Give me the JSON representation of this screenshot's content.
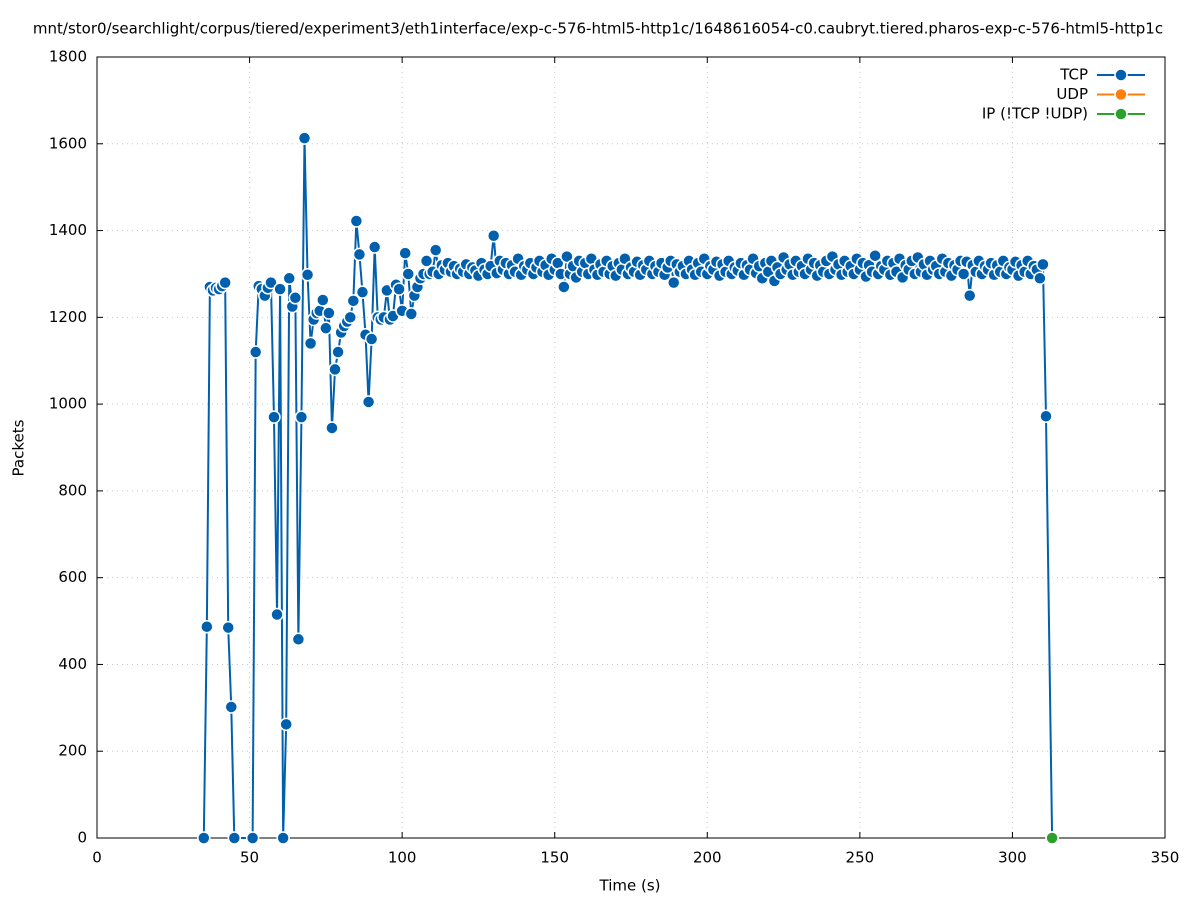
{
  "chart_data": {
    "type": "line",
    "title": "mnt/stor0/searchlight/corpus/tiered/experiment3/eth1interface/exp-c-576-html5-http1c/1648616054-c0.caubryt.tiered.pharos-exp-c-576-html5-http1c",
    "xlabel": "Time (s)",
    "ylabel": "Packets",
    "xlim": [
      0,
      350
    ],
    "xticks": [
      0,
      50,
      100,
      150,
      200,
      250,
      300,
      350
    ],
    "ylim": [
      0,
      1800
    ],
    "yticks": [
      0,
      200,
      400,
      600,
      800,
      1000,
      1200,
      1400,
      1600,
      1800
    ],
    "grid": true,
    "legend": "top-right",
    "series": [
      {
        "name": "TCP",
        "color": "#0060ad",
        "x": [
          35,
          36,
          37,
          38,
          39,
          40,
          41,
          42,
          43,
          44,
          45,
          51,
          52,
          53,
          54,
          55,
          56,
          57,
          58,
          59,
          60,
          61,
          62,
          63,
          64,
          65,
          66,
          67,
          68,
          69,
          70,
          71,
          72,
          73,
          74,
          75,
          76,
          77,
          78,
          79,
          80,
          81,
          82,
          83,
          84,
          85,
          86,
          87,
          88,
          89,
          90,
          91,
          92,
          93,
          94,
          95,
          96,
          97,
          98,
          99,
          100,
          101,
          102,
          103,
          104,
          105,
          106,
          107,
          108,
          109,
          110,
          111,
          112,
          113,
          114,
          115,
          116,
          117,
          118,
          119,
          120,
          121,
          122,
          123,
          124,
          125,
          126,
          127,
          128,
          129,
          130,
          131,
          132,
          133,
          134,
          135,
          136,
          137,
          138,
          139,
          140,
          141,
          142,
          143,
          144,
          145,
          146,
          147,
          148,
          149,
          150,
          151,
          152,
          153,
          154,
          155,
          156,
          157,
          158,
          159,
          160,
          161,
          162,
          163,
          164,
          165,
          166,
          167,
          168,
          169,
          170,
          171,
          172,
          173,
          174,
          175,
          176,
          177,
          178,
          179,
          180,
          181,
          182,
          183,
          184,
          185,
          186,
          187,
          188,
          189,
          190,
          191,
          192,
          193,
          194,
          195,
          196,
          197,
          198,
          199,
          200,
          201,
          202,
          203,
          204,
          205,
          206,
          207,
          208,
          209,
          210,
          211,
          212,
          213,
          214,
          215,
          216,
          217,
          218,
          219,
          220,
          221,
          222,
          223,
          224,
          225,
          226,
          227,
          228,
          229,
          230,
          231,
          232,
          233,
          234,
          235,
          236,
          237,
          238,
          239,
          240,
          241,
          242,
          243,
          244,
          245,
          246,
          247,
          248,
          249,
          250,
          251,
          252,
          253,
          254,
          255,
          256,
          257,
          258,
          259,
          260,
          261,
          262,
          263,
          264,
          265,
          266,
          267,
          268,
          269,
          270,
          271,
          272,
          273,
          274,
          275,
          276,
          277,
          278,
          279,
          280,
          281,
          282,
          283,
          284,
          285,
          286,
          287,
          288,
          289,
          290,
          291,
          292,
          293,
          294,
          295,
          296,
          297,
          298,
          299,
          300,
          301,
          302,
          303,
          304,
          305,
          306,
          307,
          308,
          309,
          310,
          311,
          313
        ],
        "values": [
          0,
          487,
          1270,
          1262,
          1268,
          1265,
          1272,
          1280,
          485,
          302,
          0,
          0,
          1120,
          1272,
          1265,
          1250,
          1268,
          1280,
          970,
          515,
          1265,
          0,
          262,
          1290,
          1225,
          1245,
          458,
          970,
          1613,
          1298,
          1140,
          1195,
          1210,
          1215,
          1240,
          1175,
          1210,
          945,
          1080,
          1120,
          1165,
          1180,
          1190,
          1200,
          1238,
          1422,
          1345,
          1258,
          1160,
          1005,
          1150,
          1362,
          1200,
          1195,
          1200,
          1262,
          1195,
          1203,
          1275,
          1265,
          1215,
          1348,
          1300,
          1208,
          1250,
          1270,
          1290,
          1300,
          1330,
          1300,
          1305,
          1355,
          1300,
          1320,
          1310,
          1325,
          1305,
          1318,
          1300,
          1312,
          1305,
          1322,
          1300,
          1315,
          1308,
          1296,
          1325,
          1310,
          1300,
          1318,
          1388,
          1302,
          1330,
          1310,
          1325,
          1300,
          1320,
          1305,
          1335,
          1298,
          1318,
          1310,
          1325,
          1300,
          1315,
          1330,
          1305,
          1320,
          1298,
          1335,
          1310,
          1325,
          1300,
          1270,
          1340,
          1300,
          1318,
          1292,
          1330,
          1305,
          1325,
          1300,
          1335,
          1310,
          1298,
          1322,
          1305,
          1330,
          1300,
          1318,
          1296,
          1325,
          1310,
          1335,
          1300,
          1315,
          1305,
          1328,
          1298,
          1320,
          1310,
          1330,
          1300,
          1318,
          1305,
          1325,
          1298,
          1315,
          1330,
          1280,
          1322,
          1305,
          1318,
          1300,
          1330,
          1310,
          1298,
          1325,
          1305,
          1335,
          1300,
          1318,
          1310,
          1328,
          1296,
          1322,
          1305,
          1330,
          1300,
          1315,
          1308,
          1325,
          1298,
          1320,
          1310,
          1335,
          1302,
          1318,
          1290,
          1325,
          1305,
          1330,
          1284,
          1315,
          1300,
          1338,
          1310,
          1322,
          1298,
          1330,
          1305,
          1318,
          1300,
          1335,
          1310,
          1325,
          1296,
          1320,
          1305,
          1330,
          1300,
          1340,
          1310,
          1322,
          1298,
          1330,
          1305,
          1318,
          1300,
          1335,
          1310,
          1325,
          1294,
          1320,
          1305,
          1342,
          1300,
          1318,
          1310,
          1330,
          1298,
          1325,
          1305,
          1335,
          1292,
          1320,
          1310,
          1330,
          1300,
          1338,
          1305,
          1322,
          1298,
          1330,
          1310,
          1318,
          1300,
          1335,
          1305,
          1325,
          1296,
          1320,
          1310,
          1330,
          1300,
          1328,
          1250,
          1320,
          1305,
          1330,
          1300,
          1318,
          1310,
          1325,
          1298,
          1320,
          1305,
          1330,
          1300,
          1315,
          1310,
          1328,
          1296,
          1320,
          1305,
          1330,
          1300,
          1318,
          1310,
          1290,
          1322,
          972,
          0
        ]
      },
      {
        "name": "UDP",
        "color": "#ff7f0e",
        "x": [
          313
        ],
        "values": [
          0
        ]
      },
      {
        "name": "IP (!TCP  !UDP)",
        "color": "#2ca02c",
        "x": [
          313
        ],
        "values": [
          0
        ]
      }
    ]
  }
}
